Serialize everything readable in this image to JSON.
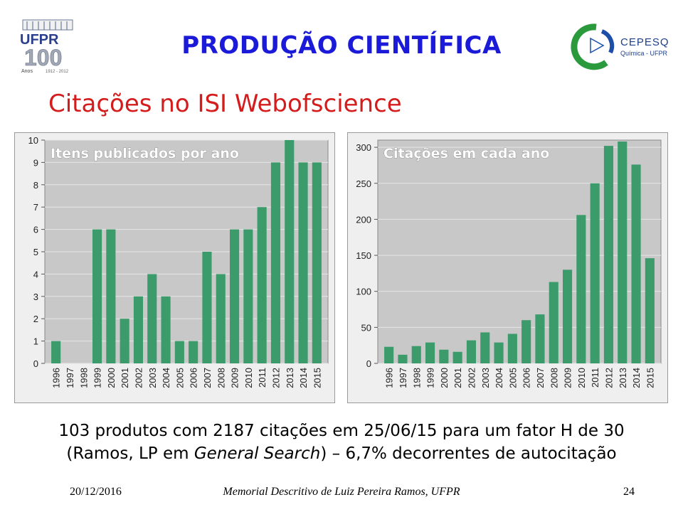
{
  "slide": {
    "title": "PRODUÇÃO CIENTÍFICA",
    "subtitle": "Citações no ISI Webofscience",
    "summary_line1": "103 produtos com 2187 citações em 25/06/15 para um fator H de 30",
    "summary_line2_pre": "(Ramos, LP em ",
    "summary_line2_italic": "General Search",
    "summary_line2_post": ") – 6,7% decorrentes de autocitação",
    "footer_date": "20/12/2016",
    "footer_center": "Memorial Descritivo de Luiz Pereira Ramos, UFPR",
    "footer_page": "24"
  },
  "logos": {
    "ufpr": {
      "text": "UFPR",
      "years_big": "100",
      "anos": "Anos",
      "range": "1912 - 2012"
    },
    "cepesq": {
      "name": "CEPESQ",
      "sub": "Química - UFPR"
    }
  },
  "colors": {
    "bar": "#3c9b6b",
    "plot_bg": "#c8c8c8",
    "title_blue": "#1a1ad8",
    "subtitle_red": "#d41c1c"
  },
  "chart_data": [
    {
      "type": "bar",
      "title": "Itens publicados por ano",
      "categories": [
        "1996",
        "1997",
        "1998",
        "1999",
        "2000",
        "2001",
        "2002",
        "2003",
        "2004",
        "2005",
        "2006",
        "2007",
        "2008",
        "2009",
        "2010",
        "2011",
        "2012",
        "2013",
        "2014",
        "2015"
      ],
      "values": [
        1,
        0,
        0,
        6,
        6,
        2,
        3,
        4,
        3,
        1,
        1,
        5,
        4,
        6,
        6,
        7,
        9,
        10,
        9,
        9
      ],
      "yticks": [
        0,
        1,
        2,
        3,
        4,
        5,
        6,
        7,
        8,
        9,
        10
      ],
      "ylim": [
        0,
        10
      ],
      "grid": true
    },
    {
      "type": "bar",
      "title": "Citações em cada ano",
      "categories": [
        "1996",
        "1997",
        "1998",
        "1999",
        "2000",
        "2001",
        "2002",
        "2003",
        "2004",
        "2005",
        "2006",
        "2007",
        "2008",
        "2009",
        "2010",
        "2011",
        "2012",
        "2013",
        "2014",
        "2015"
      ],
      "values": [
        23,
        12,
        24,
        29,
        19,
        16,
        32,
        43,
        29,
        41,
        60,
        68,
        113,
        130,
        206,
        250,
        302,
        308,
        276,
        146
      ],
      "yticks": [
        0,
        50,
        100,
        150,
        200,
        250,
        300
      ],
      "ylim": [
        0,
        310
      ],
      "grid": true
    }
  ]
}
